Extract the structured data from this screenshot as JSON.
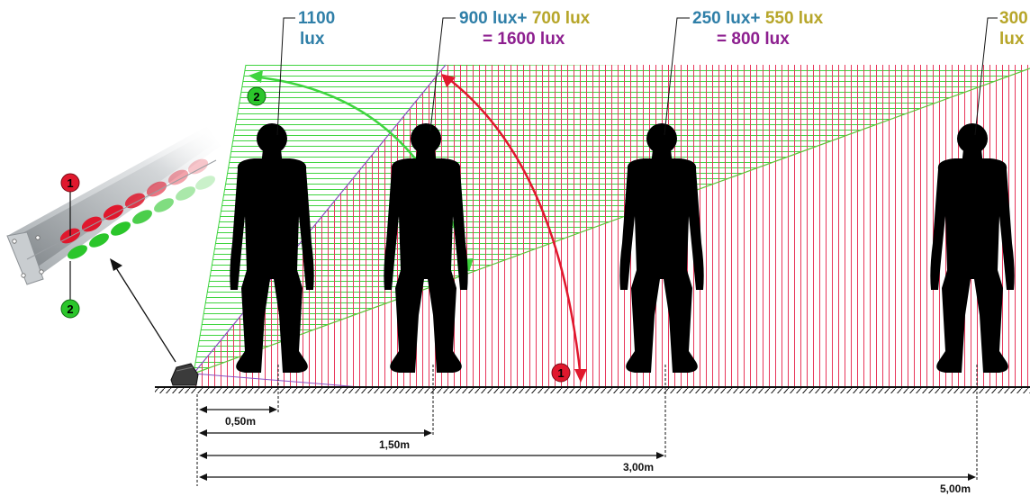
{
  "colors": {
    "blue": "#2f7fa8",
    "olive": "#b7a62a",
    "purple": "#8d1f8f",
    "green_beam": "#3fd43f",
    "red_beam": "#e8365a",
    "marker_red": "#e0182d",
    "marker_green": "#2bc62b",
    "ground": "#111111"
  },
  "markers": {
    "one": "1",
    "two": "2"
  },
  "callouts": [
    {
      "line1_a": "1100",
      "line1_b": "",
      "line2": "lux"
    },
    {
      "line1_a": "900 lux+",
      "line1_b": "700 lux",
      "line2": "= 1600 lux"
    },
    {
      "line1_a": "250 lux+",
      "line1_b": "550 lux",
      "line2": "= 800 lux"
    },
    {
      "line1_a": "",
      "line1_b": "300",
      "line2": "lux"
    }
  ],
  "distances": [
    "0,50m",
    "1,50m",
    "3,00m",
    "5,00m"
  ],
  "icons": [
    "luminaire-icon",
    "light-fixture-icon",
    "person-silhouette-icon"
  ]
}
